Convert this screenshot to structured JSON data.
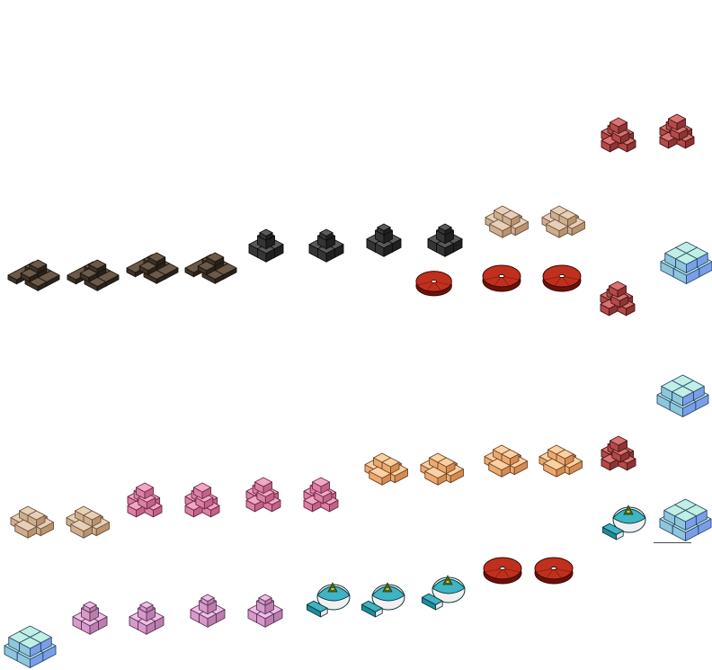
{
  "sheet": {
    "background": "#ffffff",
    "palettes": {
      "brown": {
        "top": "#6b5a4a",
        "left": "#3f3226",
        "right": "#2a2118",
        "outline": "#1a140e"
      },
      "black": {
        "top": "#5a5a5a",
        "left": "#353535",
        "right": "#202020",
        "outline": "#0d0d0d"
      },
      "beige": {
        "top": "#e7cfb8",
        "left": "#cfae8e",
        "right": "#b9936f",
        "outline": "#6b5440"
      },
      "pink": {
        "top": "#f2a7c3",
        "left": "#de7fa6",
        "right": "#c4628a",
        "outline": "#6b2c46"
      },
      "orange": {
        "top": "#fbd0a2",
        "left": "#eda970",
        "right": "#d58c52",
        "outline": "#6e4526"
      },
      "red": {
        "top": "#d97373",
        "left": "#b44a4a",
        "right": "#8e3434",
        "outline": "#4a1616"
      },
      "lilac": {
        "top": "#efc0e6",
        "left": "#d69acb",
        "right": "#bb7eaf",
        "outline": "#5a3454"
      },
      "ice": {
        "top": "#bff0e3",
        "left": "#8ec6dc",
        "right": "#7a9ee8",
        "outline": "#2c4a6e"
      },
      "disc": {
        "top": "#c0301e",
        "left": "#8d1a0c",
        "right": "#6b1208",
        "outline": "#3a0804"
      },
      "teal": {
        "top": "#3fb4c4",
        "left": "#1f8a9a",
        "right": "#e8e8e8",
        "outline": "#113a40"
      }
    },
    "sprites": [
      {
        "id": "brown-a-1",
        "kind": "blocks-low",
        "palette": "brown"
      },
      {
        "id": "brown-a-2",
        "kind": "blocks-low",
        "palette": "brown"
      },
      {
        "id": "brown-b-1",
        "kind": "blocks-low",
        "palette": "brown"
      },
      {
        "id": "brown-b-2",
        "kind": "blocks-low",
        "palette": "brown"
      },
      {
        "id": "black-1",
        "kind": "blocks-tower",
        "palette": "black"
      },
      {
        "id": "black-2",
        "kind": "blocks-tower",
        "palette": "black"
      },
      {
        "id": "black-3",
        "kind": "blocks-tower",
        "palette": "black"
      },
      {
        "id": "black-4",
        "kind": "blocks-tower",
        "palette": "black"
      },
      {
        "id": "disc-quarter",
        "kind": "disc-quarter",
        "palette": "disc"
      },
      {
        "id": "beige-top-1",
        "kind": "blocks-ring",
        "palette": "beige"
      },
      {
        "id": "beige-top-2",
        "kind": "blocks-ring",
        "palette": "beige"
      },
      {
        "id": "disc-1",
        "kind": "disc",
        "palette": "disc"
      },
      {
        "id": "disc-2",
        "kind": "disc",
        "palette": "disc"
      },
      {
        "id": "red-1",
        "kind": "blocks-mound",
        "palette": "red"
      },
      {
        "id": "red-2",
        "kind": "blocks-mound",
        "palette": "red"
      },
      {
        "id": "red-3",
        "kind": "blocks-mound",
        "palette": "red"
      },
      {
        "id": "ice-1",
        "kind": "blocks-cube",
        "palette": "ice"
      },
      {
        "id": "ice-2",
        "kind": "blocks-cube",
        "palette": "ice"
      },
      {
        "id": "red-4",
        "kind": "blocks-mound",
        "palette": "red"
      },
      {
        "id": "orange-1",
        "kind": "blocks-ring",
        "palette": "orange"
      },
      {
        "id": "orange-2",
        "kind": "blocks-ring",
        "palette": "orange"
      },
      {
        "id": "orange-3",
        "kind": "blocks-ring",
        "palette": "orange"
      },
      {
        "id": "orange-4",
        "kind": "blocks-ring",
        "palette": "orange"
      },
      {
        "id": "pink-1",
        "kind": "blocks-mound",
        "palette": "pink"
      },
      {
        "id": "pink-2",
        "kind": "blocks-mound",
        "palette": "pink"
      },
      {
        "id": "pink-3",
        "kind": "blocks-mound",
        "palette": "pink"
      },
      {
        "id": "pink-4",
        "kind": "blocks-mound",
        "palette": "pink"
      },
      {
        "id": "beige-1",
        "kind": "blocks-ring",
        "palette": "beige"
      },
      {
        "id": "beige-2",
        "kind": "blocks-ring",
        "palette": "beige"
      },
      {
        "id": "teal-1",
        "kind": "dish",
        "palette": "teal"
      },
      {
        "id": "ice-3",
        "kind": "blocks-cube",
        "palette": "ice"
      },
      {
        "id": "disc-3",
        "kind": "disc",
        "palette": "disc"
      },
      {
        "id": "disc-4",
        "kind": "disc",
        "palette": "disc"
      },
      {
        "id": "teal-2",
        "kind": "dish",
        "palette": "teal"
      },
      {
        "id": "teal-3",
        "kind": "dish",
        "palette": "teal"
      },
      {
        "id": "teal-4",
        "kind": "dish",
        "palette": "teal"
      },
      {
        "id": "lilac-1",
        "kind": "blocks-tower",
        "palette": "lilac"
      },
      {
        "id": "lilac-2",
        "kind": "blocks-tower",
        "palette": "lilac"
      },
      {
        "id": "lilac-3",
        "kind": "blocks-tower",
        "palette": "lilac"
      },
      {
        "id": "lilac-4",
        "kind": "blocks-tower",
        "palette": "lilac"
      },
      {
        "id": "ice-4",
        "kind": "blocks-cube",
        "palette": "ice"
      }
    ]
  }
}
